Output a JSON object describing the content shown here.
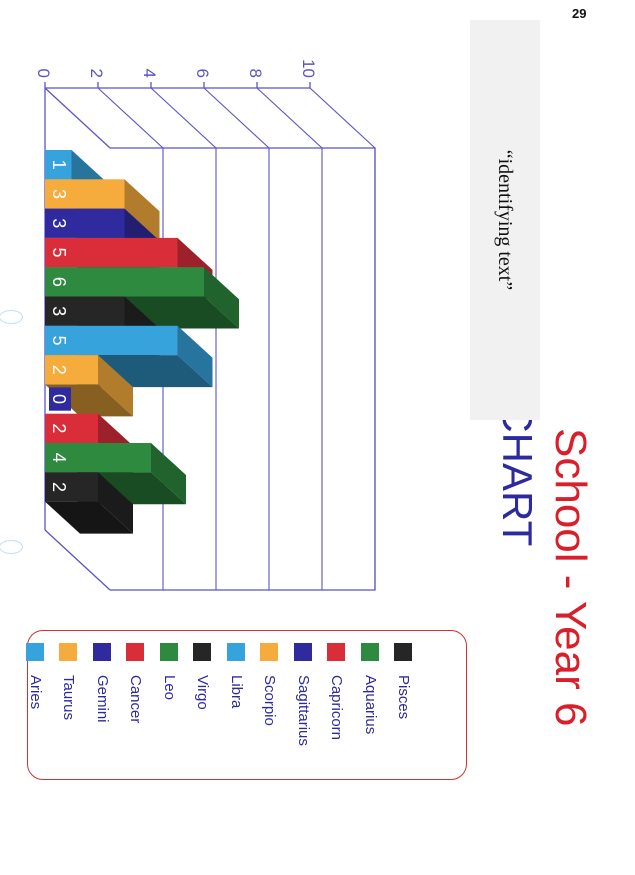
{
  "page_number": "29",
  "identifying_text": "“identifying text”",
  "colors": {
    "title_red": "#d81f2a",
    "title_blue": "#2d2a9e",
    "axis": "#5a54c8",
    "legend_border": "#d43030"
  },
  "chart_data": {
    "type": "bar",
    "title": "School - Year 6",
    "subtitle": "ZODIAC CHART",
    "xlabel": "",
    "ylabel": "",
    "ylim": [
      0,
      10
    ],
    "yticks": [
      0,
      2,
      4,
      6,
      8,
      10
    ],
    "grid": true,
    "legend_position": "right",
    "categories": [
      "Aries",
      "Taurus",
      "Gemini",
      "Cancer",
      "Leo",
      "Virgo",
      "Libra",
      "Scorpio",
      "Sagittarius",
      "Capricorn",
      "Aquarius",
      "Pisces"
    ],
    "values": [
      1,
      3,
      3,
      5,
      6,
      3,
      5,
      2,
      0,
      2,
      4,
      2
    ],
    "data_labels": [
      "1",
      "3",
      "3",
      "5",
      "6",
      "3",
      "5",
      "2",
      "0",
      "2",
      "4",
      "2"
    ],
    "colors": [
      "#36a3dc",
      "#f6ac3c",
      "#2f2b9f",
      "#d92e3a",
      "#2e8a3f",
      "#262626",
      "#36a3dc",
      "#f6ac3c",
      "#2f2b9f",
      "#d92e3a",
      "#2e8a3f",
      "#262626"
    ]
  }
}
